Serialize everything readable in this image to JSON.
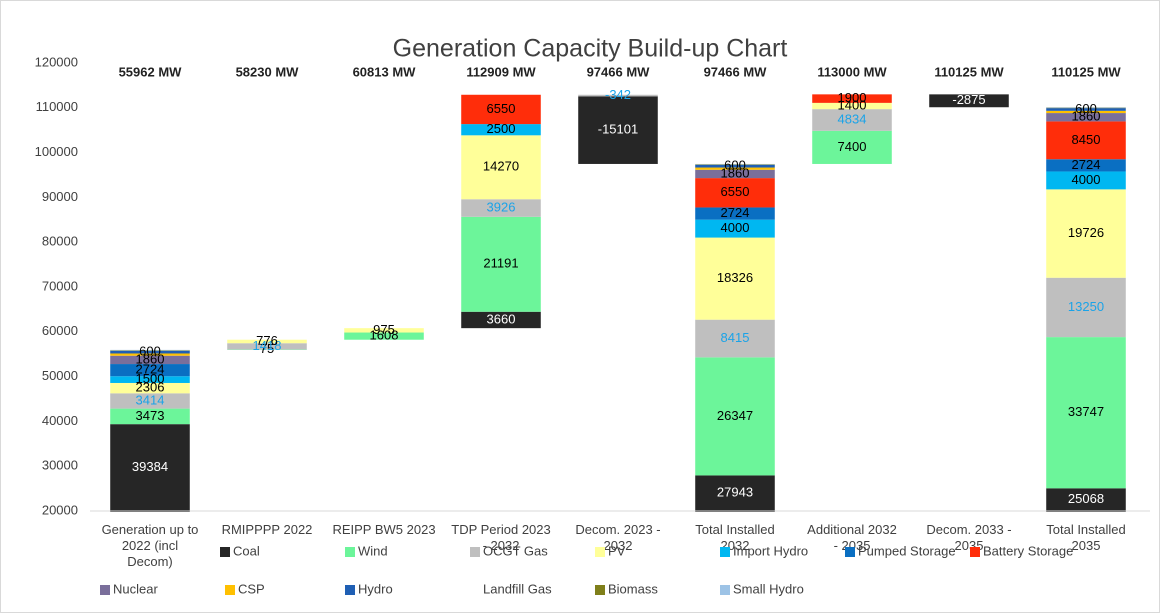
{
  "chart_data": {
    "type": "waterfall",
    "title": "Generation Capacity Build-up Chart",
    "categories": [
      "Generation up to 2022 (incl Decom)",
      "RMIPPPP 2022",
      "REIPP BW5 2023",
      "TDP Period 2023 - 2032",
      "Decom. 2023 - 2032",
      "Total Installed 2032",
      "Additional 2032 - 2035",
      "Decom. 2033 - 2035",
      "Total Installed 2035"
    ],
    "totals": [
      55962,
      58230,
      60813,
      112909,
      97466,
      97466,
      113000,
      110125,
      110125
    ],
    "total_labels": [
      "55962 MW",
      "58230 MW",
      "60813 MW",
      "112909 MW",
      "97466 MW",
      "97466 MW",
      "113000 MW",
      "110125 MW",
      "110125 MW"
    ],
    "series": [
      {
        "name": "Coal",
        "color": "#262626",
        "label_color": "#ffffff",
        "labels": true,
        "values": [
          39384,
          null,
          null,
          3660,
          -15101,
          27943,
          null,
          -2875,
          25068
        ]
      },
      {
        "name": "Wind",
        "color": "#6cf59a",
        "label_color": "#000000",
        "labels": true,
        "values": [
          3473,
          75,
          1608,
          21191,
          null,
          26347,
          7400,
          null,
          33747
        ]
      },
      {
        "name": "OCGT Gas",
        "color": "#bfbfbf",
        "label_color": "#1aa3e8",
        "labels": true,
        "values": [
          3414,
          1418,
          null,
          3926,
          -342,
          8415,
          4834,
          null,
          13250
        ]
      },
      {
        "name": "PV",
        "color": "#ffff99",
        "label_color": "#000000",
        "labels": true,
        "values": [
          2306,
          776,
          975,
          14270,
          null,
          18326,
          1400,
          null,
          19726
        ]
      },
      {
        "name": "Import Hydro",
        "color": "#00b7f1",
        "label_color": "#000000",
        "labels": true,
        "values": [
          1500,
          null,
          null,
          2500,
          null,
          4000,
          null,
          null,
          4000
        ]
      },
      {
        "name": "Pumped Storage",
        "color": "#0a6fc2",
        "label_color": "#000000",
        "labels": true,
        "values": [
          2724,
          null,
          null,
          null,
          null,
          2724,
          null,
          null,
          2724
        ]
      },
      {
        "name": "Battery Storage",
        "color": "#ff2d0a",
        "label_color": "#000000",
        "labels": true,
        "values": [
          null,
          null,
          null,
          6550,
          null,
          6550,
          1900,
          null,
          8450
        ]
      },
      {
        "name": "Nuclear",
        "color": "#7a6f9b",
        "label_color": "#000000",
        "labels": true,
        "values": [
          1860,
          null,
          null,
          null,
          null,
          1860,
          null,
          null,
          1860
        ]
      },
      {
        "name": "CSP",
        "color": "#ffc000",
        "label_color": "#000000",
        "labels": false,
        "values": [
          500,
          null,
          null,
          null,
          null,
          500,
          null,
          null,
          500
        ]
      },
      {
        "name": "Hydro",
        "color": "#1f5fb4",
        "label_color": "#000000",
        "labels": true,
        "values": [
          600,
          null,
          null,
          null,
          null,
          600,
          null,
          null,
          600
        ]
      },
      {
        "name": "Landfill Gas",
        "color": "#ffffff",
        "label_color": "#000000",
        "labels": false,
        "values": [
          null,
          null,
          null,
          null,
          null,
          null,
          null,
          null,
          null
        ]
      },
      {
        "name": "Biomass",
        "color": "#7f7f1a",
        "label_color": "#000000",
        "labels": false,
        "values": [
          100,
          null,
          null,
          null,
          null,
          100,
          null,
          null,
          100
        ]
      },
      {
        "name": "Small Hydro",
        "color": "#9dc3e6",
        "label_color": "#000000",
        "labels": false,
        "values": [
          100,
          null,
          null,
          null,
          null,
          100,
          null,
          null,
          100
        ]
      }
    ],
    "ylim": [
      20000,
      120000
    ],
    "yticks": [
      20000,
      30000,
      40000,
      50000,
      60000,
      70000,
      80000,
      90000,
      100000,
      110000,
      120000
    ],
    "grid": false
  }
}
